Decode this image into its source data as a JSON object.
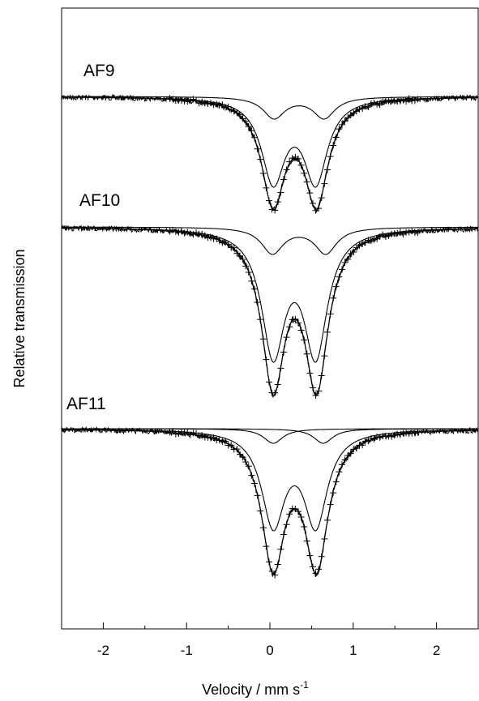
{
  "chart_data": {
    "type": "scatter",
    "xlabel": "Velocity / mm s",
    "xlabel_superscript": "-1",
    "ylabel": "Relative transmission",
    "xlim": [
      -2.5,
      2.5
    ],
    "x_ticks": [
      -2,
      -1,
      0,
      1,
      2
    ],
    "x_tick_labels": [
      "-2",
      "-1",
      "0",
      "1",
      "2"
    ],
    "y_ticks_shown": false,
    "legend": "none",
    "grid": false,
    "spectra": [
      {
        "label": "AF9",
        "baseline_relative": 1.0,
        "data_marker": "+",
        "components": [
          {
            "type": "doublet",
            "center_shift": 0.35,
            "splitting": 0.6,
            "relative_depth": 0.2
          },
          {
            "type": "doublet",
            "center_shift": 0.3,
            "splitting": 0.52,
            "relative_depth": 0.8
          }
        ],
        "envelope_min_velocities": [
          0.04,
          0.56
        ]
      },
      {
        "label": "AF10",
        "baseline_relative": 1.0,
        "data_marker": "+",
        "components": [
          {
            "type": "doublet",
            "center_shift": 0.35,
            "splitting": 0.64,
            "relative_depth": 0.18
          },
          {
            "type": "doublet",
            "center_shift": 0.3,
            "splitting": 0.5,
            "relative_depth": 0.82
          }
        ],
        "envelope_min_velocities": [
          0.04,
          0.56
        ]
      },
      {
        "label": "AF11",
        "baseline_relative": 1.0,
        "data_marker": "+",
        "components": [
          {
            "type": "singlet",
            "center_shift": 0.04,
            "relative_depth": 0.1
          },
          {
            "type": "singlet",
            "center_shift": 0.64,
            "relative_depth": 0.1
          },
          {
            "type": "doublet",
            "center_shift": 0.3,
            "splitting": 0.52,
            "relative_depth": 0.75
          }
        ],
        "envelope_min_velocities": [
          0.04,
          0.56
        ]
      }
    ]
  }
}
